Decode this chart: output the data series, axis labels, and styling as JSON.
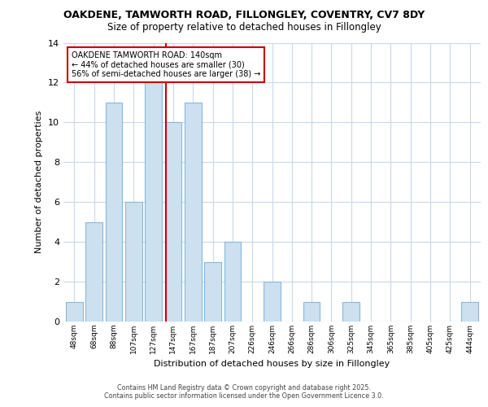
{
  "title1": "OAKDENE, TAMWORTH ROAD, FILLONGLEY, COVENTRY, CV7 8DY",
  "title2": "Size of property relative to detached houses in Fillongley",
  "xlabel": "Distribution of detached houses by size in Fillongley",
  "ylabel": "Number of detached properties",
  "categories": [
    "48sqm",
    "68sqm",
    "88sqm",
    "107sqm",
    "127sqm",
    "147sqm",
    "167sqm",
    "187sqm",
    "207sqm",
    "226sqm",
    "246sqm",
    "266sqm",
    "286sqm",
    "306sqm",
    "325sqm",
    "345sqm",
    "365sqm",
    "385sqm",
    "405sqm",
    "425sqm",
    "444sqm"
  ],
  "values": [
    1,
    5,
    11,
    6,
    12,
    10,
    11,
    3,
    4,
    0,
    2,
    0,
    1,
    0,
    1,
    0,
    0,
    0,
    0,
    0,
    1
  ],
  "bar_color": "#cce0f0",
  "bar_edge_color": "#8ab8d8",
  "annotation_text": "OAKDENE TAMWORTH ROAD: 140sqm\n← 44% of detached houses are smaller (30)\n56% of semi-detached houses are larger (38) →",
  "annotation_box_color": "#ffffff",
  "annotation_box_edge": "#cc0000",
  "footer1": "Contains HM Land Registry data © Crown copyright and database right 2025.",
  "footer2": "Contains public sector information licensed under the Open Government Licence 3.0.",
  "ylim": [
    0,
    14
  ],
  "background_color": "#ffffff",
  "plot_bg": "#ffffff",
  "grid_color": "#c8d8e8",
  "red_line_color": "#cc0000"
}
